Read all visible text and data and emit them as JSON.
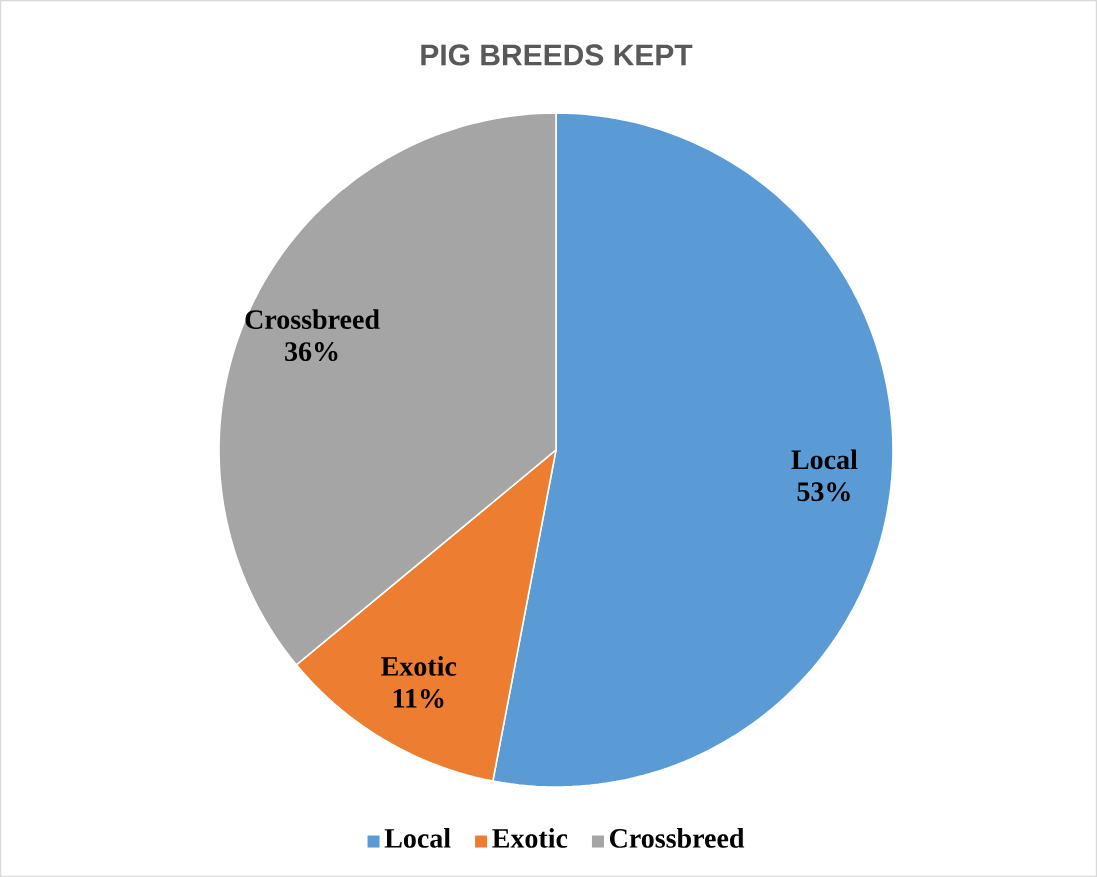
{
  "chart_data": {
    "type": "pie",
    "title": "PIG BREEDS KEPT",
    "categories": [
      "Local",
      "Exotic",
      "Crossbreed"
    ],
    "values": [
      53,
      11,
      36
    ],
    "colors": [
      "#5b9bd5",
      "#ed7d31",
      "#a5a5a5"
    ],
    "value_labels": [
      "53%",
      "11%",
      "36%"
    ],
    "legend": "bottom"
  }
}
